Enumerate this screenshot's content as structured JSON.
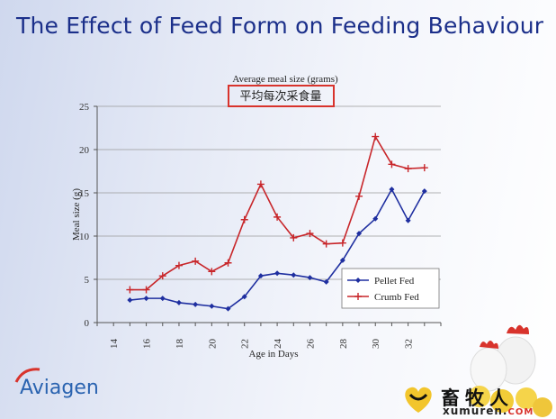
{
  "slide": {
    "title": "The Effect of Feed Form on Feeding Behaviour",
    "brand": "Aviagen",
    "watermark_cn": "畜牧人",
    "watermark_url": "xumuren.",
    "watermark_url_suffix": "COM"
  },
  "chart_data": {
    "type": "line",
    "title": "Average meal size (grams)",
    "subtitle": "平均每次采食量",
    "xlabel": "Age in Days",
    "ylabel": "Meal size (g)",
    "xlim": [
      13,
      34
    ],
    "ylim": [
      0,
      25
    ],
    "xticks": [
      14,
      16,
      18,
      20,
      22,
      24,
      26,
      28,
      30,
      32
    ],
    "yticks": [
      0,
      5,
      10,
      15,
      20,
      25
    ],
    "grid": true,
    "legend_position": "bottom-right",
    "series": [
      {
        "name": "Pellet Fed",
        "color": "#1f2fa0",
        "marker": "diamond",
        "x": [
          15,
          16,
          17,
          18,
          19,
          20,
          21,
          22,
          23,
          24,
          25,
          26,
          27,
          28,
          29,
          30,
          31,
          32,
          33
        ],
        "values": [
          2.6,
          2.8,
          2.8,
          2.3,
          2.1,
          1.9,
          1.6,
          3.0,
          5.4,
          5.7,
          5.5,
          5.2,
          4.7,
          7.2,
          10.3,
          12.0,
          15.4,
          11.8,
          15.2
        ]
      },
      {
        "name": "Crumb Fed",
        "color": "#c8262a",
        "marker": "plus",
        "x": [
          15,
          16,
          17,
          18,
          19,
          20,
          21,
          22,
          23,
          24,
          25,
          26,
          27,
          28,
          29,
          30,
          31,
          32,
          33
        ],
        "values": [
          3.8,
          3.8,
          5.4,
          6.6,
          7.1,
          5.9,
          6.9,
          11.9,
          16.0,
          12.2,
          9.8,
          10.3,
          9.1,
          9.2,
          14.6,
          21.5,
          18.3,
          17.8,
          17.9
        ]
      }
    ]
  }
}
